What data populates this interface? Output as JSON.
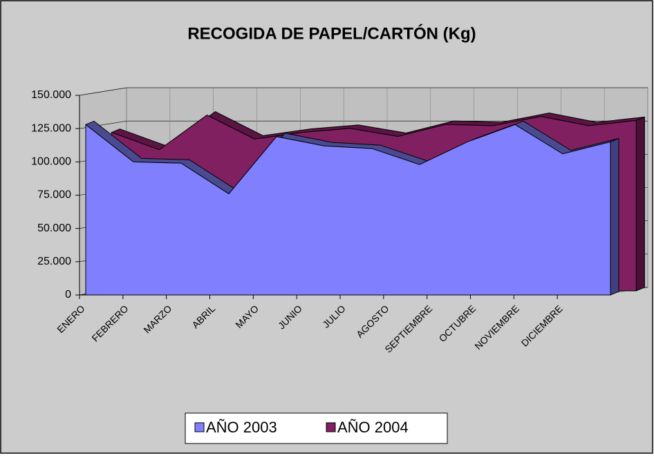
{
  "chart_data": {
    "type": "area3d",
    "title": "RECOGIDA DE PAPEL/CARTÓN (Kg)",
    "categories": [
      "ENERO",
      "FEBRERO",
      "MARZO",
      "ABRIL",
      "MAYO",
      "JUNIO",
      "JULIO",
      "AGOSTO",
      "SEPTIEMBRE",
      "OCTUBRE",
      "NOVIEMBRE",
      "DICIEMBRE"
    ],
    "series": [
      {
        "name": "AÑO 2003",
        "color": "#8080ff",
        "values": [
          128000,
          100000,
          99000,
          76000,
          119000,
          112000,
          110000,
          98000,
          115000,
          128000,
          106000,
          115000
        ]
      },
      {
        "name": "AÑO 2004",
        "color": "#802060",
        "values": [
          119000,
          106000,
          132000,
          114000,
          119000,
          122000,
          116000,
          125000,
          124000,
          131000,
          124000,
          128000
        ]
      }
    ],
    "ylim": [
      0,
      150000
    ],
    "yticks": [
      0,
      {
        "value": 25000,
        "label": "25.000"
      },
      {
        "value": 50000,
        "label": "50.000"
      },
      {
        "value": 75000,
        "label": "75.000"
      },
      {
        "value": 100000,
        "label": "100.000"
      },
      {
        "value": 125000,
        "label": "125.000"
      },
      {
        "value": 150000,
        "label": "150.000"
      }
    ],
    "grid": true,
    "legend": "bottom"
  }
}
